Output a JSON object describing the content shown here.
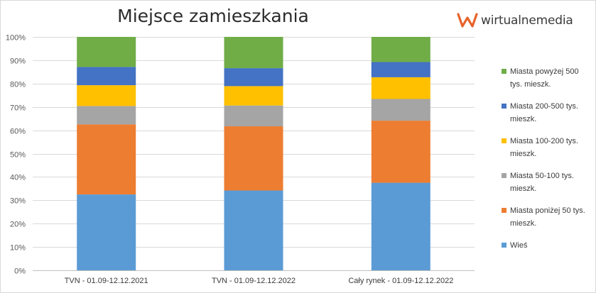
{
  "title": "Miejsce zamieszkania",
  "logo": {
    "text": "wirtualnemedia",
    "accent": "#e8622a"
  },
  "chart_data": {
    "type": "bar",
    "stacked": true,
    "percent": true,
    "categories": [
      "TVN - 01.09-12.12.2021",
      "TVN - 01.09-12.12.2022",
      "Cały rynek - 01.09-12.12.2022"
    ],
    "series": [
      {
        "name": "Wieś",
        "color": "#5b9bd5",
        "values": [
          32.5,
          34.2,
          37.5
        ]
      },
      {
        "name": "Miasta poniżej 50 tys. mieszk.",
        "color": "#ed7d31",
        "values": [
          30.0,
          27.5,
          26.6
        ]
      },
      {
        "name": "Miasta 50-100 tys. mieszk.",
        "color": "#a5a5a5",
        "values": [
          7.9,
          8.9,
          9.3
        ]
      },
      {
        "name": "Miasta 100-200 tys. mieszk.",
        "color": "#ffc000",
        "values": [
          8.9,
          8.3,
          9.3
        ]
      },
      {
        "name": "Miasta 200-500 tys. mieszk.",
        "color": "#4472c4",
        "values": [
          7.8,
          7.7,
          6.5
        ]
      },
      {
        "name": "Miasta powyżej 500 tys. mieszk.",
        "color": "#70ad47",
        "values": [
          12.9,
          13.4,
          10.8
        ]
      }
    ],
    "y_ticks": [
      "0%",
      "10%",
      "20%",
      "30%",
      "40%",
      "50%",
      "60%",
      "70%",
      "80%",
      "90%",
      "100%"
    ],
    "ylim": [
      0,
      100
    ],
    "grid": true,
    "legend_position": "right"
  }
}
